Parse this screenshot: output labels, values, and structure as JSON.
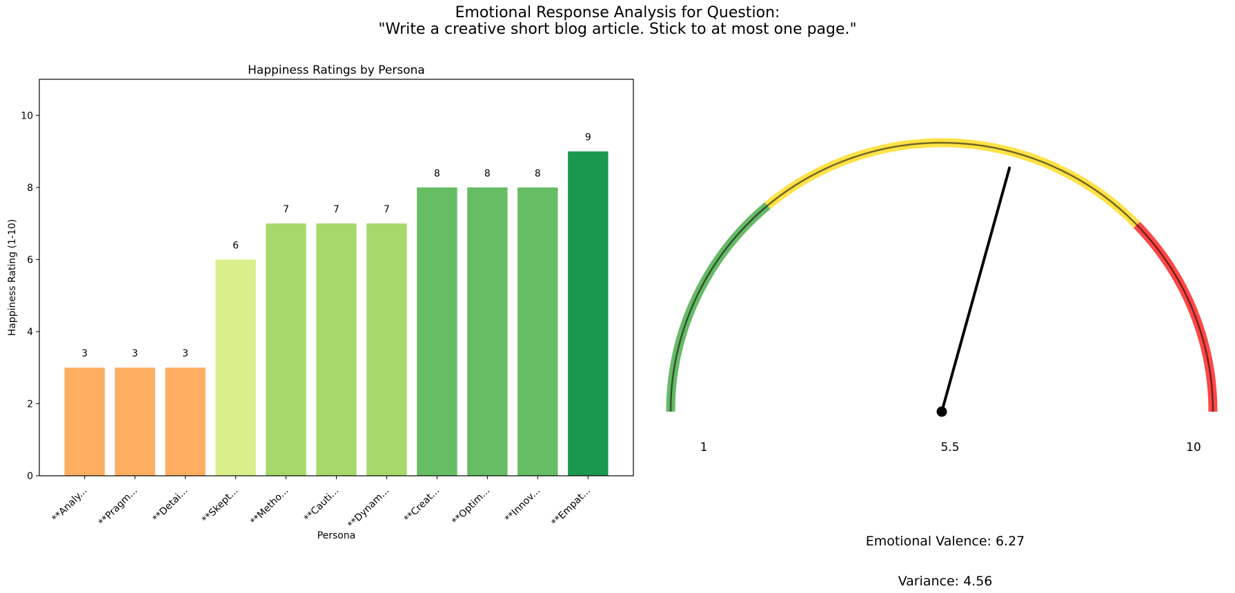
{
  "figure": {
    "suptitle_line1": "Emotional Response Analysis for Question:",
    "suptitle_line2": "\"Write a creative short blog article. Stick to at most one page.\""
  },
  "chart_data": [
    {
      "type": "bar",
      "title": "Happiness Ratings by Persona",
      "xlabel": "Persona",
      "ylabel": "Happiness Rating (1-10)",
      "ylim": [
        0,
        11
      ],
      "yticks": [
        0,
        2,
        4,
        6,
        8,
        10
      ],
      "grid": false,
      "categories": [
        "**Analy...",
        "**Pragm...",
        "**Detai...",
        "**Skept...",
        "**Metho...",
        "**Cauti...",
        "**Dynam...",
        "**Creat...",
        "**Optim...",
        "**Innov...",
        "**Empat..."
      ],
      "values": [
        3,
        3,
        3,
        6,
        7,
        7,
        7,
        8,
        8,
        8,
        9
      ],
      "bar_colors": [
        "#fdae61",
        "#fdae61",
        "#fdae61",
        "#d9ef8b",
        "#a6d96a",
        "#a6d96a",
        "#a6d96a",
        "#66bd63",
        "#66bd63",
        "#66bd63",
        "#1a9850"
      ],
      "data_labels": [
        "3",
        "3",
        "3",
        "6",
        "7",
        "7",
        "7",
        "8",
        "8",
        "8",
        "9"
      ]
    },
    {
      "type": "gauge",
      "min": 1,
      "max": 10,
      "tick_labels": [
        "1",
        "5.5",
        "10"
      ],
      "value": 6.27,
      "bands": [
        {
          "from": 1,
          "to": 3.5,
          "color": "#2ca02c"
        },
        {
          "from": 3.5,
          "to": 7.8,
          "color": "#ffd700"
        },
        {
          "from": 7.8,
          "to": 10,
          "color": "#ff0000"
        }
      ],
      "valence_text": "Emotional Valence: 6.27",
      "variance_text": "Variance: 4.56"
    }
  ]
}
